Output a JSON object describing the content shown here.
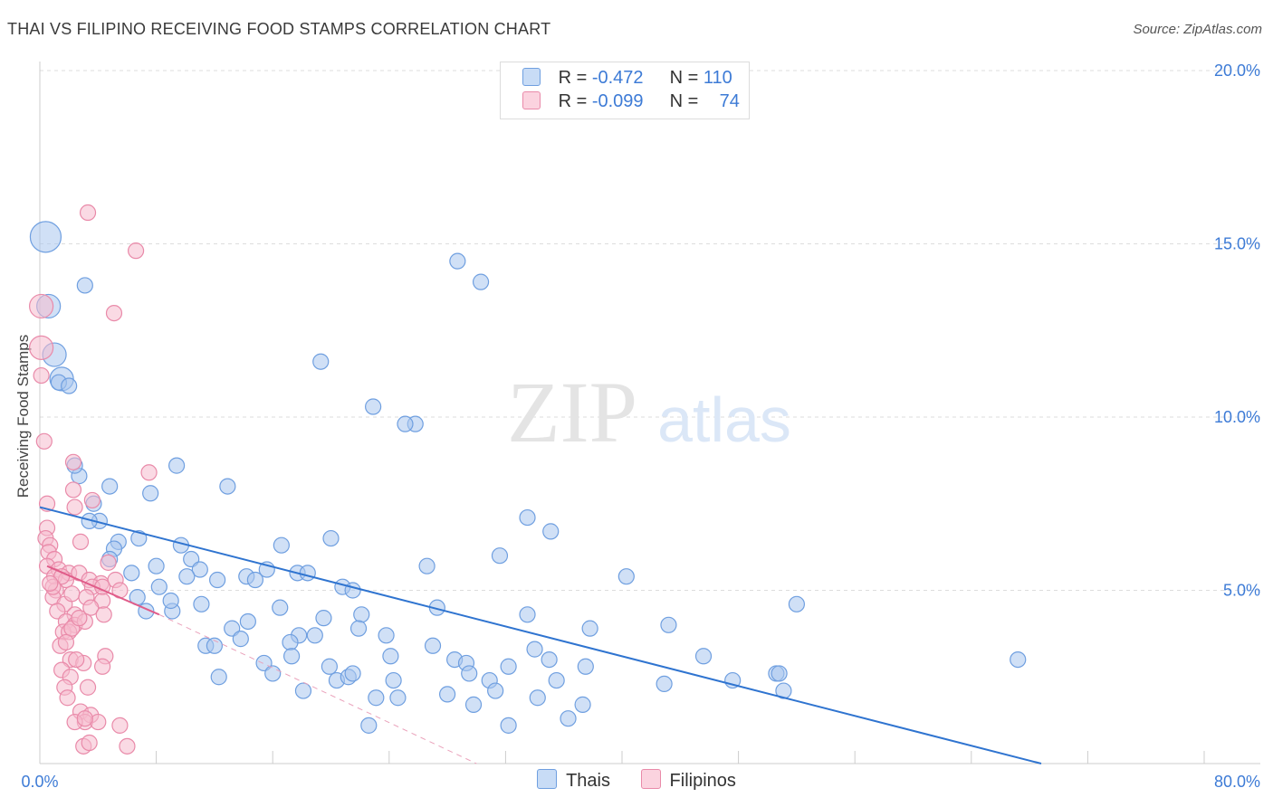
{
  "header": {
    "title": "THAI VS FILIPINO RECEIVING FOOD STAMPS CORRELATION CHART",
    "source": "Source: ZipAtlas.com"
  },
  "watermark": {
    "zip": "ZIP",
    "atlas": "atlas"
  },
  "legend": {
    "rows": [
      {
        "r_label": "R = ",
        "r_value": "-0.472",
        "n_label": "N = ",
        "n_value": "110",
        "color": "#a9c7ef"
      },
      {
        "r_label": "R = ",
        "r_value": "-0.099",
        "n_label": "N = ",
        "n_value": "74",
        "color": "#f4b6c8"
      }
    ]
  },
  "bottom_legend": {
    "items": [
      {
        "label": "Thais",
        "color": "#a9c7ef"
      },
      {
        "label": "Filipinos",
        "color": "#f4b6c8"
      }
    ]
  },
  "colors": {
    "blue_fill": "#a9c7ef",
    "blue_stroke": "#6f9fe0",
    "blue_line": "#2f74d0",
    "pink_fill": "#f6bccd",
    "pink_stroke": "#e98aa9",
    "pink_line": "#e05c89",
    "tick_text": "#3d7bd6"
  },
  "chart_data": {
    "type": "scatter",
    "title": "THAI VS FILIPINO RECEIVING FOOD STAMPS CORRELATION CHART",
    "xlabel": "",
    "ylabel": "Receiving Food Stamps",
    "xlim": [
      0,
      80
    ],
    "ylim": [
      0,
      20
    ],
    "x_tick_labels": [
      "0.0%",
      "80.0%"
    ],
    "y_ticks": [
      5,
      10,
      15,
      20
    ],
    "y_tick_labels": [
      "5.0%",
      "10.0%",
      "15.0%",
      "20.0%"
    ],
    "grid": true,
    "series": [
      {
        "name": "Thais",
        "r": -0.472,
        "n": 110,
        "trend": {
          "x": [
            0,
            68.8
          ],
          "y": [
            7.4,
            0
          ]
        },
        "points": [
          [
            0.4,
            15.2,
            3
          ],
          [
            0.6,
            13.2,
            2
          ],
          [
            1.0,
            11.8,
            2
          ],
          [
            1.5,
            11.1,
            2
          ],
          [
            1.3,
            11.0,
            1
          ],
          [
            2.0,
            10.9,
            1
          ],
          [
            3.1,
            13.8,
            1
          ],
          [
            2.7,
            8.3,
            1
          ],
          [
            2.4,
            8.6,
            1
          ],
          [
            4.8,
            8.0,
            1
          ],
          [
            3.7,
            7.5,
            1
          ],
          [
            4.1,
            7.0,
            1
          ],
          [
            3.4,
            7.0,
            1
          ],
          [
            7.6,
            7.8,
            1
          ],
          [
            9.4,
            8.6,
            1
          ],
          [
            12.9,
            8.0,
            1
          ],
          [
            6.8,
            6.5,
            1
          ],
          [
            5.4,
            6.4,
            1
          ],
          [
            5.1,
            6.2,
            1
          ],
          [
            4.8,
            5.9,
            1
          ],
          [
            6.3,
            5.5,
            1
          ],
          [
            8.0,
            5.7,
            1
          ],
          [
            9.7,
            6.3,
            1
          ],
          [
            10.4,
            5.9,
            1
          ],
          [
            11.0,
            5.6,
            1
          ],
          [
            10.1,
            5.4,
            1
          ],
          [
            12.2,
            5.3,
            1
          ],
          [
            8.2,
            5.1,
            1
          ],
          [
            14.2,
            5.4,
            1
          ],
          [
            14.8,
            5.3,
            1
          ],
          [
            15.6,
            5.6,
            1
          ],
          [
            16.6,
            6.3,
            1
          ],
          [
            17.7,
            5.5,
            1
          ],
          [
            18.4,
            5.5,
            1
          ],
          [
            20.0,
            6.5,
            1
          ],
          [
            6.7,
            4.8,
            1
          ],
          [
            7.3,
            4.4,
            1
          ],
          [
            9.1,
            4.4,
            1
          ],
          [
            9.0,
            4.7,
            1
          ],
          [
            11.1,
            4.6,
            1
          ],
          [
            13.2,
            3.9,
            1
          ],
          [
            14.3,
            4.1,
            1
          ],
          [
            13.8,
            3.6,
            1
          ],
          [
            11.4,
            3.4,
            1
          ],
          [
            12.0,
            3.4,
            1
          ],
          [
            16.5,
            4.5,
            1
          ],
          [
            19.3,
            11.6,
            1
          ],
          [
            22.9,
            10.3,
            1
          ],
          [
            25.8,
            9.8,
            1
          ],
          [
            25.1,
            9.8,
            1
          ],
          [
            28.7,
            14.5,
            1
          ],
          [
            30.3,
            13.9,
            1
          ],
          [
            31.6,
            6.0,
            1
          ],
          [
            33.5,
            7.1,
            1
          ],
          [
            35.1,
            6.7,
            1
          ],
          [
            26.6,
            5.7,
            1
          ],
          [
            40.3,
            5.4,
            1
          ],
          [
            20.8,
            5.1,
            1
          ],
          [
            21.5,
            5.0,
            1
          ],
          [
            19.5,
            4.2,
            1
          ],
          [
            17.8,
            3.7,
            1
          ],
          [
            17.2,
            3.5,
            1
          ],
          [
            18.9,
            3.7,
            1
          ],
          [
            22.1,
            4.3,
            1
          ],
          [
            21.9,
            3.9,
            1
          ],
          [
            23.8,
            3.7,
            1
          ],
          [
            24.1,
            3.1,
            1
          ],
          [
            27.0,
            3.4,
            1
          ],
          [
            27.3,
            4.5,
            1
          ],
          [
            28.5,
            3.0,
            1
          ],
          [
            29.3,
            2.9,
            1
          ],
          [
            29.5,
            2.6,
            1
          ],
          [
            30.9,
            2.4,
            1
          ],
          [
            32.2,
            2.8,
            1
          ],
          [
            33.5,
            4.3,
            1
          ],
          [
            34.0,
            3.3,
            1
          ],
          [
            35.0,
            3.0,
            1
          ],
          [
            35.5,
            2.4,
            1
          ],
          [
            37.5,
            2.8,
            1
          ],
          [
            37.8,
            3.9,
            1
          ],
          [
            43.2,
            4.0,
            1
          ],
          [
            47.6,
            2.4,
            1
          ],
          [
            50.6,
            2.6,
            1
          ],
          [
            50.8,
            2.6,
            1
          ],
          [
            51.1,
            2.1,
            1
          ],
          [
            52.0,
            4.6,
            1
          ],
          [
            67.2,
            3.0,
            1
          ],
          [
            15.4,
            2.9,
            1
          ],
          [
            16.0,
            2.6,
            1
          ],
          [
            17.3,
            3.1,
            1
          ],
          [
            18.1,
            2.1,
            1
          ],
          [
            19.9,
            2.8,
            1
          ],
          [
            20.4,
            2.4,
            1
          ],
          [
            21.2,
            2.5,
            1
          ],
          [
            21.5,
            2.6,
            1
          ],
          [
            23.1,
            1.9,
            1
          ],
          [
            24.3,
            2.4,
            1
          ],
          [
            24.6,
            1.9,
            1
          ],
          [
            28.0,
            2.0,
            1
          ],
          [
            29.8,
            1.7,
            1
          ],
          [
            31.3,
            2.1,
            1
          ],
          [
            32.2,
            1.1,
            1
          ],
          [
            34.2,
            1.9,
            1
          ],
          [
            36.3,
            1.3,
            1
          ],
          [
            37.3,
            1.7,
            1
          ],
          [
            12.3,
            2.5,
            1
          ],
          [
            22.6,
            1.1,
            1
          ],
          [
            42.9,
            2.3,
            1
          ],
          [
            45.6,
            3.1,
            1
          ]
        ]
      },
      {
        "name": "Filipinos",
        "r": -0.099,
        "n": 74,
        "trend": {
          "x": [
            0.5,
            8.2
          ],
          "y": [
            5.7,
            4.3
          ]
        },
        "trend_extension": {
          "x": [
            8.2,
            30.0
          ],
          "y": [
            4.3,
            0
          ]
        },
        "points": [
          [
            0.1,
            13.2,
            2
          ],
          [
            0.1,
            12.0,
            2
          ],
          [
            0.1,
            11.2,
            1
          ],
          [
            0.3,
            9.3,
            1
          ],
          [
            3.3,
            15.9,
            1
          ],
          [
            6.6,
            14.8,
            1
          ],
          [
            5.1,
            13.0,
            1
          ],
          [
            2.3,
            8.7,
            1
          ],
          [
            7.5,
            8.4,
            1
          ],
          [
            0.5,
            7.5,
            1
          ],
          [
            2.3,
            7.9,
            1
          ],
          [
            2.4,
            7.4,
            1
          ],
          [
            3.6,
            7.6,
            1
          ],
          [
            0.5,
            6.8,
            1
          ],
          [
            0.4,
            6.5,
            1
          ],
          [
            0.7,
            6.3,
            1
          ],
          [
            0.6,
            6.1,
            1
          ],
          [
            1.0,
            5.9,
            1
          ],
          [
            2.8,
            6.4,
            1
          ],
          [
            0.5,
            5.7,
            1
          ],
          [
            1.3,
            5.6,
            1
          ],
          [
            2.0,
            5.5,
            1
          ],
          [
            1.0,
            5.4,
            1
          ],
          [
            1.8,
            5.3,
            1
          ],
          [
            2.7,
            5.5,
            1
          ],
          [
            1.5,
            5.4,
            1
          ],
          [
            3.4,
            5.3,
            1
          ],
          [
            4.2,
            5.2,
            1
          ],
          [
            4.7,
            5.8,
            1
          ],
          [
            5.2,
            5.3,
            1
          ],
          [
            5.5,
            5.0,
            1
          ],
          [
            3.6,
            5.1,
            1
          ],
          [
            1.1,
            5.0,
            1
          ],
          [
            0.9,
            4.8,
            1
          ],
          [
            1.7,
            4.6,
            1
          ],
          [
            2.2,
            4.9,
            1
          ],
          [
            3.2,
            4.8,
            1
          ],
          [
            4.3,
            4.7,
            1
          ],
          [
            1.2,
            4.4,
            1
          ],
          [
            2.4,
            4.3,
            1
          ],
          [
            3.5,
            4.5,
            1
          ],
          [
            4.4,
            4.3,
            1
          ],
          [
            1.8,
            4.1,
            1
          ],
          [
            2.4,
            4.0,
            1
          ],
          [
            3.1,
            4.1,
            1
          ],
          [
            1.6,
            3.8,
            1
          ],
          [
            2.0,
            3.8,
            1
          ],
          [
            2.2,
            3.9,
            1
          ],
          [
            2.7,
            4.2,
            1
          ],
          [
            1.4,
            3.4,
            1
          ],
          [
            1.8,
            3.5,
            1
          ],
          [
            2.1,
            3.0,
            1
          ],
          [
            3.0,
            2.9,
            1
          ],
          [
            1.5,
            2.7,
            1
          ],
          [
            2.1,
            2.5,
            1
          ],
          [
            1.7,
            2.2,
            1
          ],
          [
            3.3,
            2.2,
            1
          ],
          [
            1.9,
            1.9,
            1
          ],
          [
            2.8,
            1.5,
            1
          ],
          [
            3.5,
            1.4,
            1
          ],
          [
            3.1,
            1.2,
            1
          ],
          [
            2.4,
            1.2,
            1
          ],
          [
            4.0,
            1.2,
            1
          ],
          [
            5.5,
            1.1,
            1
          ],
          [
            3.0,
            0.5,
            1
          ],
          [
            6.0,
            0.5,
            1
          ],
          [
            3.4,
            0.6,
            1
          ],
          [
            4.5,
            3.1,
            1
          ],
          [
            4.3,
            2.8,
            1
          ],
          [
            4.3,
            5.1,
            1
          ],
          [
            0.9,
            5.1,
            1
          ],
          [
            2.5,
            3.0,
            1
          ],
          [
            0.7,
            5.2,
            1
          ],
          [
            3.1,
            1.3,
            1
          ]
        ]
      }
    ]
  }
}
